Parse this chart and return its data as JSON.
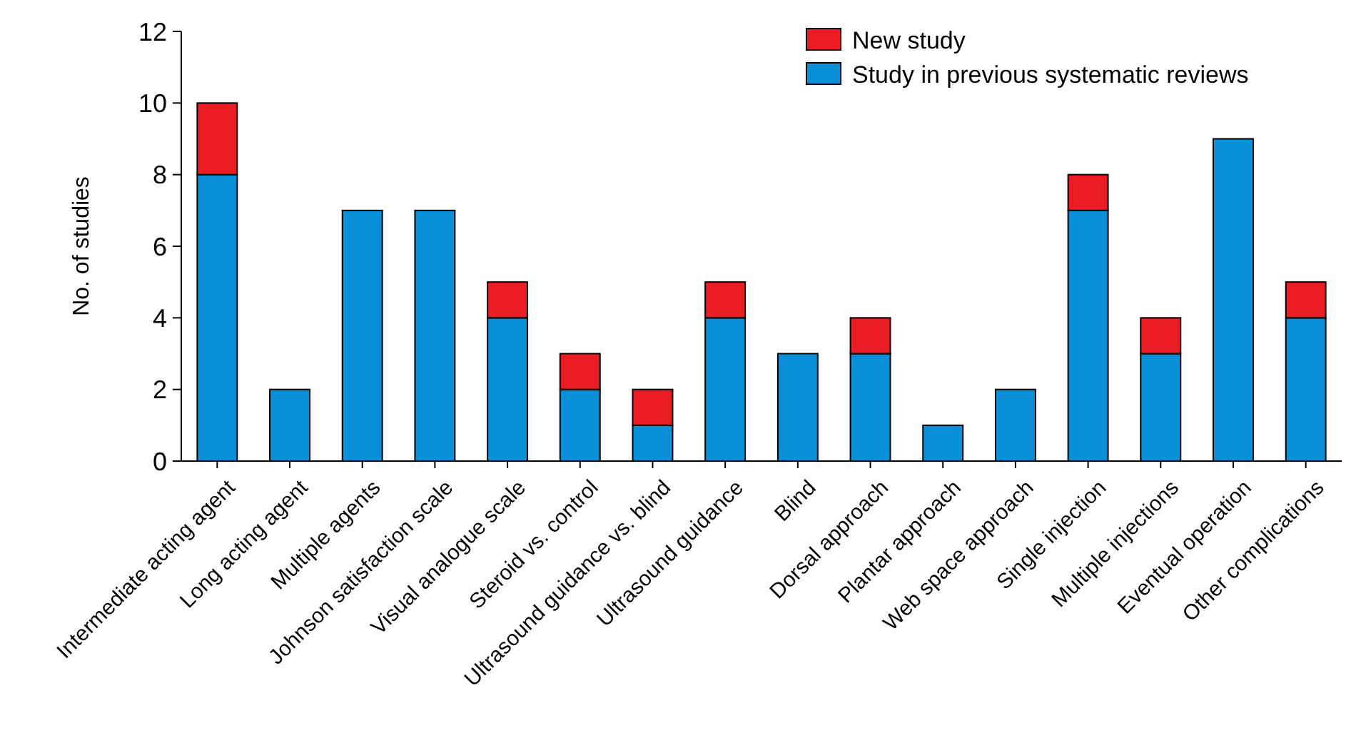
{
  "chart_data": {
    "type": "bar",
    "stacked": true,
    "ylabel": "No. of studies",
    "categories": [
      "Intermediate acting agent",
      "Long acting agent",
      "Multiple agents",
      "Johnson satisfaction scale",
      "Visual analogue scale",
      "Steroid vs. control",
      "Ultrasound guidance vs. blind",
      "Ultrasound guidance",
      "Blind",
      "Dorsal approach",
      "Plantar approach",
      "Web space approach",
      "Single injection",
      "Multiple injections",
      "Eventual operation",
      "Other complications"
    ],
    "series": [
      {
        "name": "Study in previous systematic reviews",
        "color": "#0a90d8",
        "values": [
          8,
          2,
          7,
          7,
          4,
          2,
          1,
          4,
          3,
          3,
          1,
          2,
          7,
          3,
          9,
          4
        ]
      },
      {
        "name": "New study",
        "color": "#ec1c24",
        "values": [
          2,
          null,
          null,
          null,
          1,
          1,
          1,
          1,
          null,
          1,
          null,
          null,
          1,
          1,
          null,
          1
        ]
      }
    ],
    "ylim": [
      0,
      12
    ],
    "yticks": [
      0,
      2,
      4,
      6,
      8,
      10,
      12
    ],
    "grid": false,
    "legend": "top right"
  }
}
